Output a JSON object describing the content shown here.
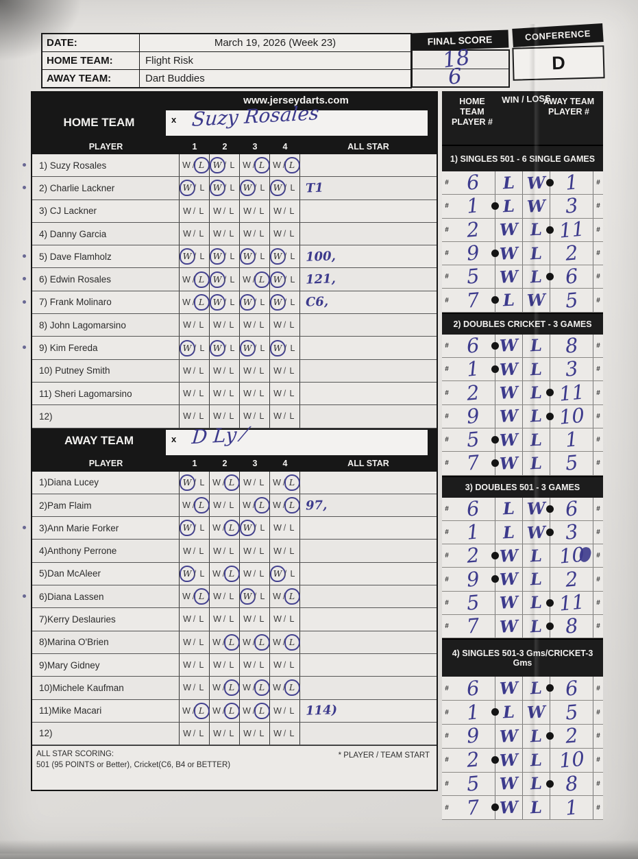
{
  "ink_color": "#3c3a8c",
  "header": {
    "date_label": "DATE:",
    "date_value": "March 19, 2026 (Week 23)",
    "home_team_label": "HOME TEAM:",
    "home_team_value": "Flight Risk",
    "away_team_label": "AWAY TEAM:",
    "away_team_value": "Dart Buddies",
    "final_score_label": "FINAL SCORE",
    "final_score_home": "18",
    "final_score_away": "6",
    "conference_label": "CONFERENCE",
    "conference_value": "D"
  },
  "website": "www.jerseydarts.com",
  "left": {
    "home_section_label": "HOME TEAM",
    "away_section_label": "AWAY TEAM",
    "signature_x_label": "x",
    "home_signature": "Suzy Rosales",
    "away_signature": "D Ly ⁄",
    "columns": {
      "player": "PLAYER",
      "games": [
        "1",
        "2",
        "3",
        "4"
      ],
      "all_star": "ALL STAR"
    },
    "wl": {
      "w": "W",
      "sep": "/",
      "l": "L"
    },
    "home_players": [
      {
        "name": "1) Suzy Rosales",
        "marks": [
          "L",
          "W",
          "L",
          "L"
        ],
        "all_star": "",
        "pen_mark": true
      },
      {
        "name": "2) Charlie Lackner",
        "marks": [
          "W",
          "W",
          "W",
          "W"
        ],
        "all_star": "T1",
        "pen_mark": true
      },
      {
        "name": "3) CJ Lackner",
        "marks": [
          null,
          null,
          null,
          null
        ],
        "all_star": "",
        "pen_mark": false
      },
      {
        "name": "4) Danny Garcia",
        "marks": [
          null,
          null,
          null,
          null
        ],
        "all_star": "",
        "pen_mark": false
      },
      {
        "name": "5) Dave Flamholz",
        "marks": [
          "W",
          "W",
          "W",
          "W"
        ],
        "all_star": "100,",
        "pen_mark": true
      },
      {
        "name": "6) Edwin Rosales",
        "marks": [
          "L",
          "W",
          "L",
          "W"
        ],
        "all_star": "121,",
        "pen_mark": true
      },
      {
        "name": "7) Frank Molinaro",
        "marks": [
          "L",
          "W",
          "W",
          "W"
        ],
        "all_star": "C6,",
        "pen_mark": true
      },
      {
        "name": "8) John Lagomarsino",
        "marks": [
          null,
          null,
          null,
          null
        ],
        "all_star": "",
        "pen_mark": false
      },
      {
        "name": "9) Kim Fereda",
        "marks": [
          "W",
          "W",
          "W",
          "W"
        ],
        "all_star": "",
        "pen_mark": true
      },
      {
        "name": "10) Putney Smith",
        "marks": [
          null,
          null,
          null,
          null
        ],
        "all_star": "",
        "pen_mark": false
      },
      {
        "name": "11) Sheri Lagomarsino",
        "marks": [
          null,
          null,
          null,
          null
        ],
        "all_star": "",
        "pen_mark": false
      },
      {
        "name": "12)",
        "marks": [
          null,
          null,
          null,
          null
        ],
        "all_star": "",
        "pen_mark": false
      }
    ],
    "away_players": [
      {
        "name": "1)Diana Lucey",
        "marks": [
          "W",
          "L",
          null,
          "L"
        ],
        "all_star": "",
        "pen_mark": false
      },
      {
        "name": "2)Pam Flaim",
        "marks": [
          "L",
          null,
          "L",
          "L"
        ],
        "all_star": "97,",
        "pen_mark": false
      },
      {
        "name": "3)Ann Marie Forker",
        "marks": [
          "W",
          "L",
          "W",
          null
        ],
        "all_star": "",
        "pen_mark": true
      },
      {
        "name": "4)Anthony Perrone",
        "marks": [
          null,
          null,
          null,
          null
        ],
        "all_star": "",
        "pen_mark": false
      },
      {
        "name": "5)Dan McAleer",
        "marks": [
          "W",
          "L",
          null,
          "W"
        ],
        "all_star": "",
        "pen_mark": false
      },
      {
        "name": "6)Diana Lassen",
        "marks": [
          "L",
          null,
          "W",
          "L"
        ],
        "all_star": "",
        "pen_mark": true
      },
      {
        "name": "7)Kerry Deslauries",
        "marks": [
          null,
          null,
          null,
          null
        ],
        "all_star": "",
        "pen_mark": false
      },
      {
        "name": "8)Marina O'Brien",
        "marks": [
          null,
          "L",
          "L",
          "L"
        ],
        "all_star": "",
        "pen_mark": false
      },
      {
        "name": "9)Mary Gidney",
        "marks": [
          null,
          null,
          null,
          null
        ],
        "all_star": "",
        "pen_mark": false
      },
      {
        "name": "10)Michele Kaufman",
        "marks": [
          null,
          "L",
          "L",
          "L"
        ],
        "all_star": "",
        "pen_mark": false
      },
      {
        "name": "11)Mike Macari",
        "marks": [
          "L",
          "L",
          "L",
          null
        ],
        "all_star": "114)",
        "pen_mark": false
      },
      {
        "name": "12)",
        "marks": [
          null,
          null,
          null,
          null
        ],
        "all_star": "",
        "pen_mark": false
      }
    ],
    "footer": {
      "all_star_scoring_line1": "ALL STAR SCORING:",
      "all_star_scoring_line2": "501 (95 POINTS or Better), Cricket(C6, B4 or BETTER)",
      "player_team_start": "* PLAYER / TEAM START"
    }
  },
  "right_panel": {
    "home_header": "HOME TEAM PLAYER #",
    "win_loss_header": "WIN / LOSS",
    "away_header": "AWAY TEAM PLAYER #",
    "hash_symbol": "#",
    "sections": [
      {
        "title": "1) SINGLES 501 - 6 SINGLE GAMES",
        "rows": [
          {
            "home_num": "6",
            "home_wl": "L",
            "away_wl": "W",
            "away_num": "1",
            "start": "away"
          },
          {
            "home_num": "1",
            "home_wl": "L",
            "away_wl": "W",
            "away_num": "3",
            "start": "home"
          },
          {
            "home_num": "2",
            "home_wl": "W",
            "away_wl": "L",
            "away_num": "11",
            "start": "away"
          },
          {
            "home_num": "9",
            "home_wl": "W",
            "away_wl": "L",
            "away_num": "2",
            "start": "home"
          },
          {
            "home_num": "5",
            "home_wl": "W",
            "away_wl": "L",
            "away_num": "6",
            "start": "away"
          },
          {
            "home_num": "7",
            "home_wl": "L",
            "away_wl": "W",
            "away_num": "5",
            "start": "home"
          }
        ]
      },
      {
        "title": "2) DOUBLES CRICKET - 3 GAMES",
        "rows": [
          {
            "home_num": "6",
            "home_wl": "W",
            "away_wl": "L",
            "away_num": "8",
            "start": "home"
          },
          {
            "home_num": "1",
            "home_wl": "W",
            "away_wl": "L",
            "away_num": "3",
            "start": "home"
          },
          {
            "home_num": "2",
            "home_wl": "W",
            "away_wl": "L",
            "away_num": "11",
            "start": "away"
          },
          {
            "home_num": "9",
            "home_wl": "W",
            "away_wl": "L",
            "away_num": "10",
            "start": "away"
          },
          {
            "home_num": "5",
            "home_wl": "W",
            "away_wl": "L",
            "away_num": "1",
            "start": "home"
          },
          {
            "home_num": "7",
            "home_wl": "W",
            "away_wl": "L",
            "away_num": "5",
            "start": "home"
          }
        ]
      },
      {
        "title": "3) DOUBLES 501 - 3 GAMES",
        "rows": [
          {
            "home_num": "6",
            "home_wl": "L",
            "away_wl": "W",
            "away_num": "6",
            "start": "away"
          },
          {
            "home_num": "1",
            "home_wl": "L",
            "away_wl": "W",
            "away_num": "3",
            "start": "away"
          },
          {
            "home_num": "2",
            "home_wl": "W",
            "away_wl": "L",
            "away_num": "10",
            "start": "home",
            "blot": true
          },
          {
            "home_num": "9",
            "home_wl": "W",
            "away_wl": "L",
            "away_num": "2",
            "start": "home"
          },
          {
            "home_num": "5",
            "home_wl": "W",
            "away_wl": "L",
            "away_num": "11",
            "start": "away"
          },
          {
            "home_num": "7",
            "home_wl": "W",
            "away_wl": "L",
            "away_num": "8",
            "start": "away"
          }
        ]
      },
      {
        "title": "4) SINGLES 501-3 Gms/CRICKET-3 Gms",
        "rows": [
          {
            "home_num": "6",
            "home_wl": "W",
            "away_wl": "L",
            "away_num": "6",
            "start": "away"
          },
          {
            "home_num": "1",
            "home_wl": "L",
            "away_wl": "W",
            "away_num": "5",
            "start": "home"
          },
          {
            "home_num": "9",
            "home_wl": "W",
            "away_wl": "L",
            "away_num": "2",
            "start": "away"
          },
          {
            "home_num": "2",
            "home_wl": "W",
            "away_wl": "L",
            "away_num": "10",
            "start": "home"
          },
          {
            "home_num": "5",
            "home_wl": "W",
            "away_wl": "L",
            "away_num": "8",
            "start": "away"
          },
          {
            "home_num": "7",
            "home_wl": "W",
            "away_wl": "L",
            "away_num": "1",
            "start": "home"
          }
        ]
      }
    ]
  }
}
